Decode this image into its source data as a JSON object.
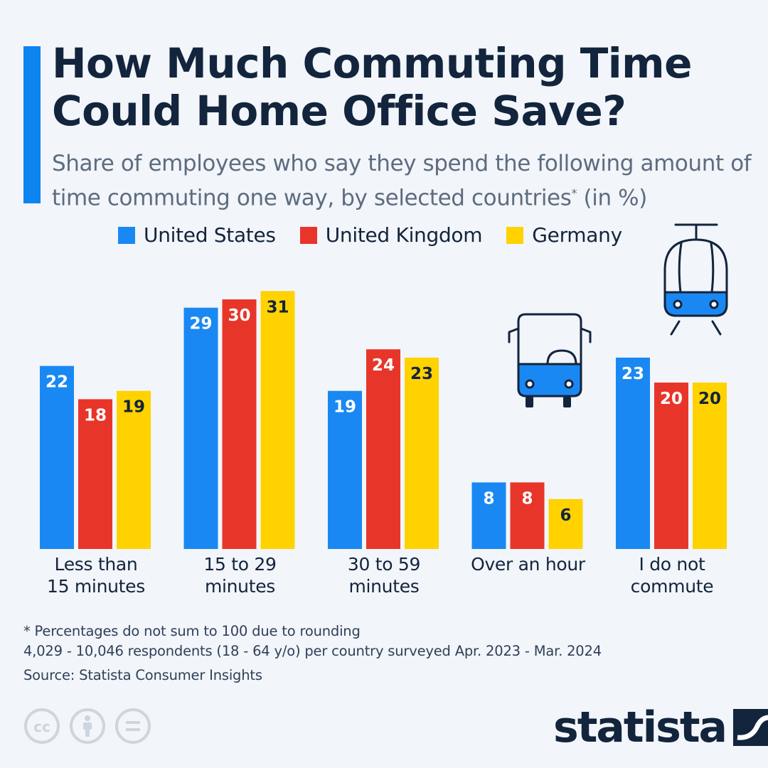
{
  "header": {
    "title": "How Much Commuting Time Could Home Office Save?",
    "subtitle": "Share of employees who say they spend the following amount of time commuting one way, by selected countries",
    "subtitle_marker": "*",
    "subtitle_suffix": " (in %)"
  },
  "chart_data": {
    "type": "bar",
    "title": "How Much Commuting Time Could Home Office Save?",
    "xlabel": "",
    "ylabel": "",
    "ylim": [
      0,
      31
    ],
    "grid": false,
    "legend_position": "top",
    "categories": [
      "Less than\n15 minutes",
      "15 to 29\nminutes",
      "30 to 59\nminutes",
      "Over an hour",
      "I do not\ncommute"
    ],
    "series": [
      {
        "name": "United States",
        "color": "#1a88f2",
        "label_color": "#ffffff",
        "values": [
          22,
          29,
          19,
          8,
          23
        ]
      },
      {
        "name": "United Kingdom",
        "color": "#e8352a",
        "label_color": "#ffffff",
        "values": [
          18,
          30,
          24,
          8,
          20
        ]
      },
      {
        "name": "Germany",
        "color": "#ffd200",
        "label_color": "#13243d",
        "values": [
          19,
          31,
          23,
          6,
          20
        ]
      }
    ]
  },
  "footer": {
    "note": "* Percentages do not sum to 100 due to rounding",
    "respondents": "4,029 - 10,046 respondents (18 - 64 y/o) per country surveyed Apr. 2023 - Mar. 2024",
    "source": "Source: Statista Consumer Insights"
  },
  "license_icons": [
    "cc-icon",
    "attribution-icon",
    "no-derivatives-icon"
  ],
  "brand": {
    "name": "statista"
  },
  "icons": [
    "bus-icon",
    "tram-icon"
  ]
}
